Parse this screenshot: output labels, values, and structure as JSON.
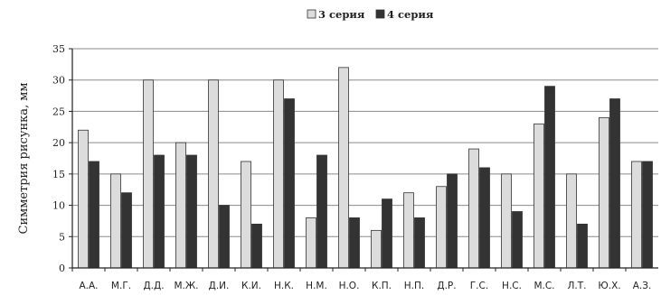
{
  "chart_data": {
    "type": "bar",
    "title": "",
    "xlabel": "",
    "ylabel": "Симметрия рисунка, мм",
    "ylim": [
      0,
      35
    ],
    "yticks": [
      0,
      5,
      10,
      15,
      20,
      25,
      30,
      35
    ],
    "grid": true,
    "legend_position": "top-center",
    "categories": [
      "А.А.",
      "М.Г.",
      "Д.Д.",
      "М.Ж.",
      "Д.И.",
      "К.И.",
      "Н.К.",
      "Н.М.",
      "Н.О.",
      "К.П.",
      "Н.П.",
      "Д.Р.",
      "Г.С.",
      "Н.С.",
      "М.С.",
      "Л.Т.",
      "Ю.Х.",
      "А.З."
    ],
    "series": [
      {
        "name": "3 серия",
        "color": "#dcdcdc",
        "values": [
          22,
          15,
          30,
          20,
          30,
          17,
          30,
          8,
          32,
          6,
          12,
          13,
          19,
          15,
          23,
          15,
          24,
          17
        ]
      },
      {
        "name": "4 серия",
        "color": "#333333",
        "values": [
          17,
          12,
          18,
          18,
          10,
          7,
          27,
          18,
          8,
          11,
          8,
          15,
          16,
          9,
          29,
          7,
          27,
          17
        ]
      }
    ]
  }
}
